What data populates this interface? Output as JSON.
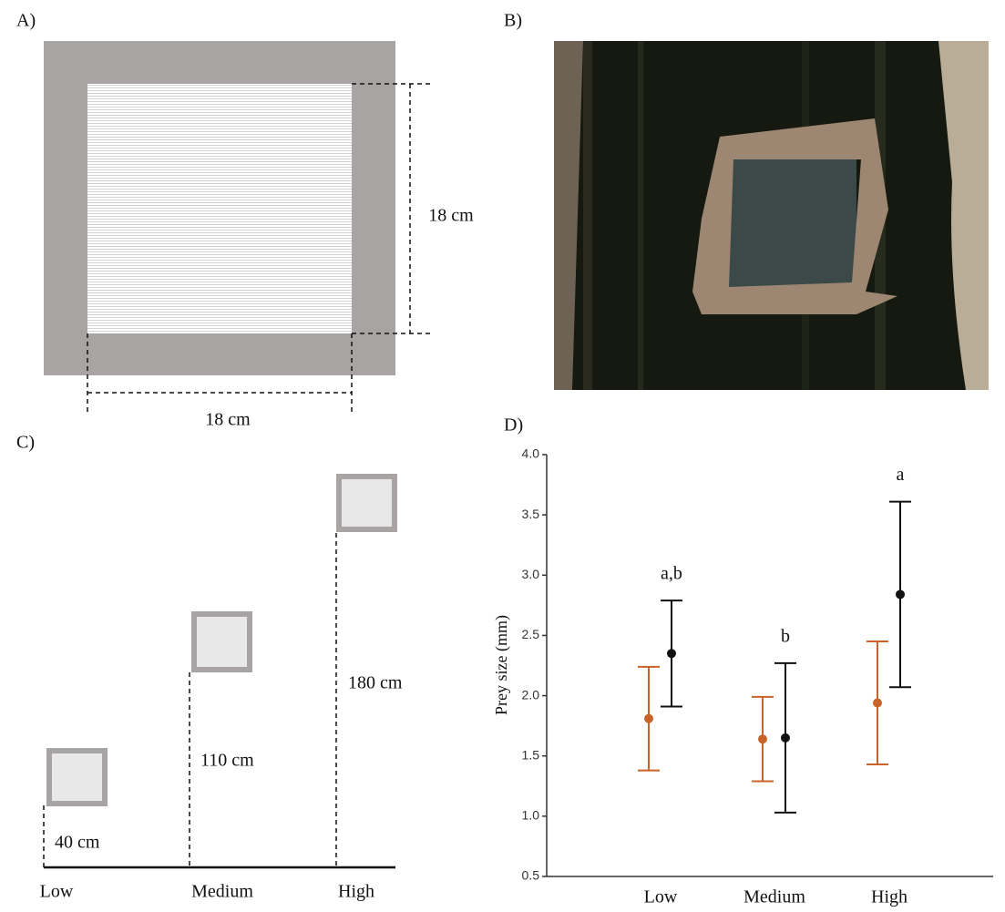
{
  "panels": {
    "a": {
      "label": "A)",
      "height_label": "18 cm",
      "width_label": "18 cm"
    },
    "b": {
      "label": "B)"
    },
    "c": {
      "label": "C)",
      "heights": [
        "40 cm",
        "110 cm",
        "180 cm"
      ],
      "positions": [
        "Low",
        "Medium",
        "High"
      ]
    },
    "d": {
      "label": "D)"
    }
  },
  "chart_data": {
    "type": "errorbar",
    "ylabel": "Prey size (mm)",
    "categories": [
      "Low",
      "Medium",
      "High"
    ],
    "series": [
      {
        "color": "#c8642a",
        "values": [
          1.81,
          1.64,
          1.94
        ],
        "errors": [
          0.43,
          0.35,
          0.51
        ]
      },
      {
        "color": "#111111",
        "values": [
          2.35,
          1.65,
          2.84
        ],
        "errors": [
          0.44,
          0.62,
          0.77
        ],
        "annotations": [
          "a,b",
          "b",
          "a"
        ]
      }
    ],
    "ylim": [
      0.5,
      4.0
    ],
    "yticks": [
      0.5,
      {
        "value": 1,
        "label": "1.0"
      },
      1.5,
      {
        "value": 2,
        "label": "2.0"
      },
      2.5,
      {
        "value": 3,
        "label": "3.0"
      },
      3.5,
      {
        "value": 4,
        "label": "4.0"
      }
    ]
  }
}
